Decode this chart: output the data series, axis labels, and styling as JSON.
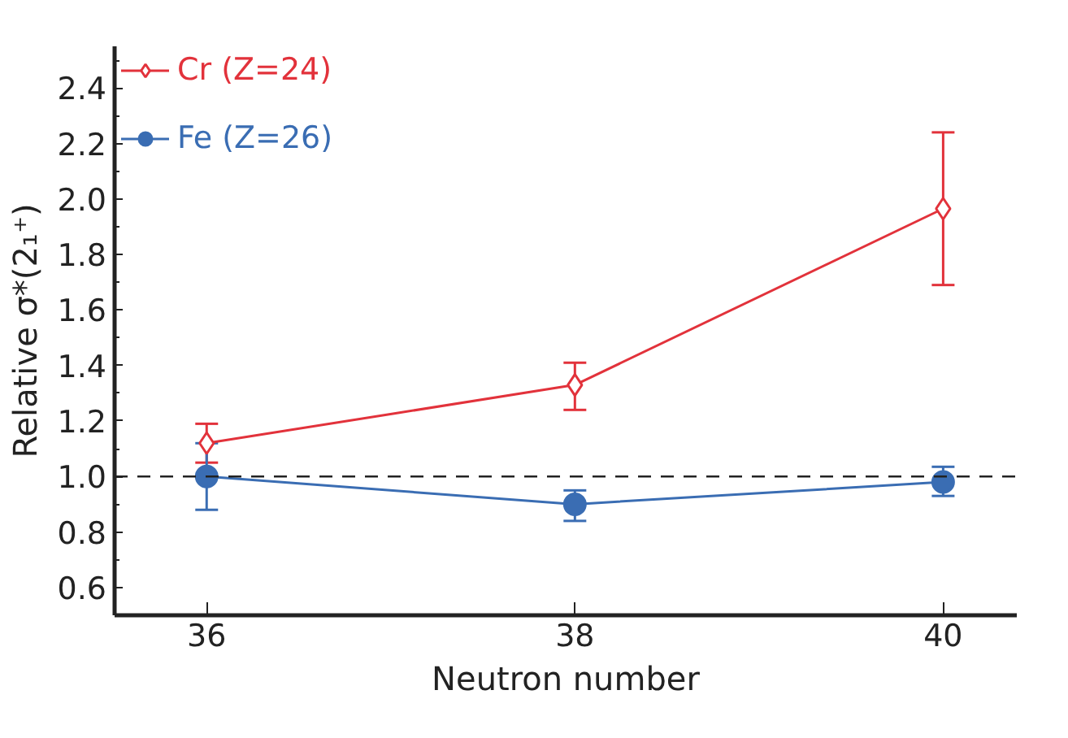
{
  "chart_data": {
    "type": "line",
    "xlabel": "Neutron number",
    "ylabel": "Relative σ*(2₁⁺)",
    "x": [
      36,
      38,
      40
    ],
    "series": [
      {
        "name": "Cr (Z=24)",
        "color": "#e2323b",
        "marker": "diamond",
        "values": [
          1.12,
          1.33,
          1.965
        ],
        "errors": [
          [
            1.05,
            1.19
          ],
          [
            1.24,
            1.41
          ],
          [
            1.69,
            2.24
          ]
        ]
      },
      {
        "name": "Fe (Z=26)",
        "color": "#3a6db3",
        "marker": "circle",
        "values": [
          1.0,
          0.9,
          0.98
        ],
        "errors": [
          [
            0.88,
            1.12
          ],
          [
            0.84,
            0.95
          ],
          [
            0.93,
            1.035
          ]
        ]
      }
    ],
    "xlim": [
      35.5,
      40.4
    ],
    "xticks": [
      36,
      38,
      40
    ],
    "ylim": [
      0.5,
      2.55
    ],
    "yticks": [
      0.6,
      0.8,
      {
        "value": 1,
        "label": "1.0"
      },
      1.2,
      1.4,
      1.6,
      1.8,
      {
        "value": 2,
        "label": "2.0"
      },
      2.2,
      2.4
    ],
    "ref_lines": [
      {
        "axis": "y",
        "value": 1.0,
        "label": null,
        "color": "#222222",
        "line_style": "dashed"
      }
    ],
    "grid": false,
    "legend": "top left"
  }
}
